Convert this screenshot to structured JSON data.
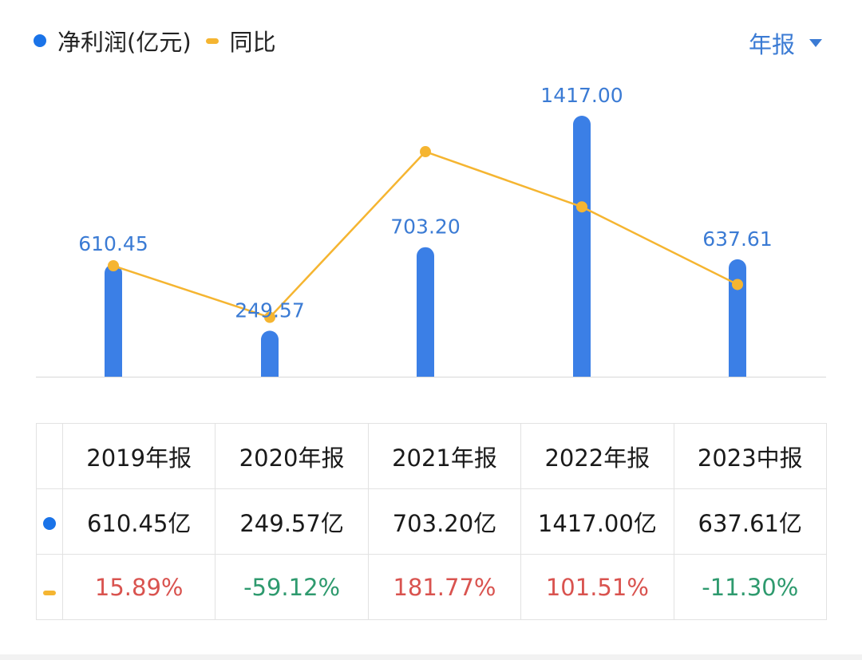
{
  "legend": {
    "series1": "净利润(亿元)",
    "series2": "同比"
  },
  "period_selector": {
    "label": "年报",
    "icon": "caret-down-icon"
  },
  "colors": {
    "bar": "#3b7fe6",
    "line": "#f5b531",
    "positive": "#d9534f",
    "negative": "#2e9a6e"
  },
  "chart_data": {
    "type": "bar+line",
    "categories": [
      "2019年报",
      "2020年报",
      "2021年报",
      "2022年报",
      "2023中报"
    ],
    "series": [
      {
        "name": "净利润(亿元)",
        "type": "bar",
        "values": [
          610.45,
          249.57,
          703.2,
          1417.0,
          637.61
        ],
        "labels": [
          "610.45",
          "249.57",
          "703.20",
          "1417.00",
          "637.61"
        ]
      },
      {
        "name": "同比",
        "type": "line",
        "values": [
          15.89,
          -59.12,
          181.77,
          101.51,
          -11.3
        ]
      }
    ],
    "grid": false
  },
  "table": {
    "headers": [
      "2019年报",
      "2020年报",
      "2021年报",
      "2022年报",
      "2023中报"
    ],
    "profit": [
      "610.45亿",
      "249.57亿",
      "703.20亿",
      "1417.00亿",
      "637.61亿"
    ],
    "yoy": [
      "15.89%",
      "-59.12%",
      "181.77%",
      "101.51%",
      "-11.30%"
    ]
  }
}
